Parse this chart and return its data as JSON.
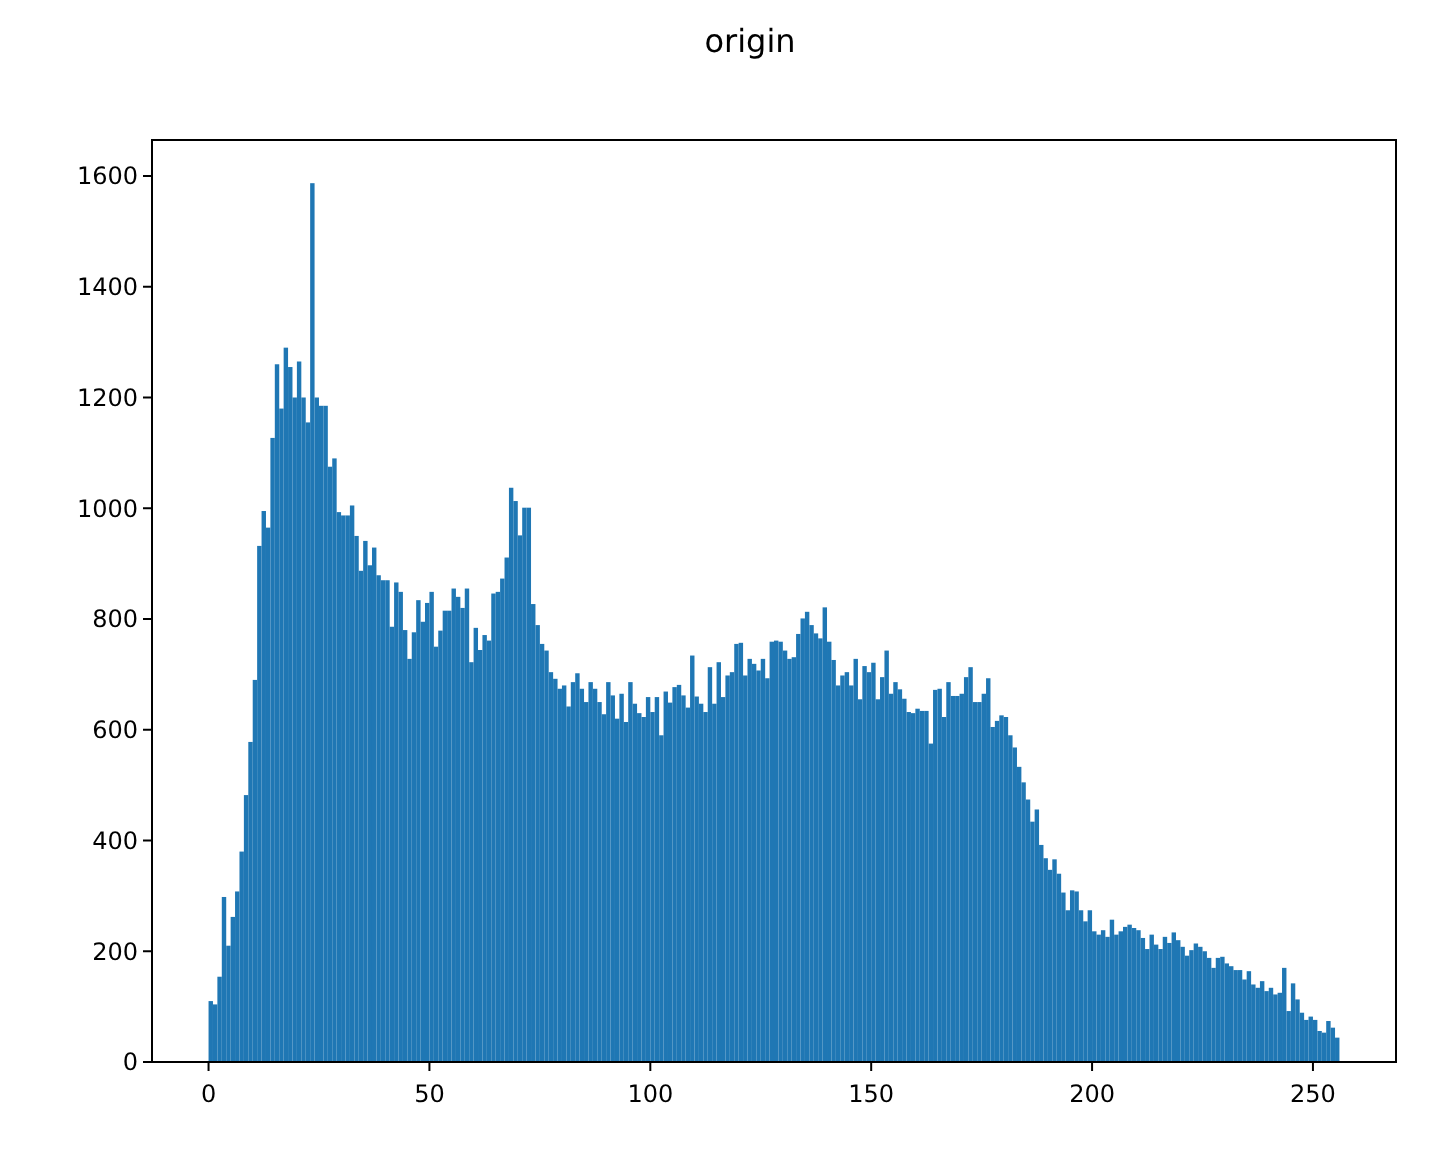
{
  "chart_data": {
    "type": "histogram",
    "title": "origin",
    "color": "#1f77b4",
    "bins": [
      0,
      1,
      2,
      3,
      4,
      5,
      6,
      7,
      8,
      9,
      10,
      11,
      12,
      13,
      14,
      15,
      16,
      17,
      18,
      19,
      20,
      21,
      22,
      23,
      24,
      25,
      26,
      27,
      28,
      29,
      30,
      31,
      32,
      33,
      34,
      35,
      36,
      37,
      38,
      39,
      40,
      41,
      42,
      43,
      44,
      45,
      46,
      47,
      48,
      49,
      50,
      51,
      52,
      53,
      54,
      55,
      56,
      57,
      58,
      59,
      60,
      61,
      62,
      63,
      64,
      65,
      66,
      67,
      68,
      69,
      70,
      71,
      72,
      73,
      74,
      75,
      76,
      77,
      78,
      79,
      80,
      81,
      82,
      83,
      84,
      85,
      86,
      87,
      88,
      89,
      90,
      91,
      92,
      93,
      94,
      95,
      96,
      97,
      98,
      99,
      100,
      101,
      102,
      103,
      104,
      105,
      106,
      107,
      108,
      109,
      110,
      111,
      112,
      113,
      114,
      115,
      116,
      117,
      118,
      119,
      120,
      121,
      122,
      123,
      124,
      125,
      126,
      127,
      128,
      129,
      130,
      131,
      132,
      133,
      134,
      135,
      136,
      137,
      138,
      139,
      140,
      141,
      142,
      143,
      144,
      145,
      146,
      147,
      148,
      149,
      150,
      151,
      152,
      153,
      154,
      155,
      156,
      157,
      158,
      159,
      160,
      161,
      162,
      163,
      164,
      165,
      166,
      167,
      168,
      169,
      170,
      171,
      172,
      173,
      174,
      175,
      176,
      177,
      178,
      179,
      180,
      181,
      182,
      183,
      184,
      185,
      186,
      187,
      188,
      189,
      190,
      191,
      192,
      193,
      194,
      195,
      196,
      197,
      198,
      199,
      200,
      201,
      202,
      203,
      204,
      205,
      206,
      207,
      208,
      209,
      210,
      211,
      212,
      213,
      214,
      215,
      216,
      217,
      218,
      219,
      220,
      221,
      222,
      223,
      224,
      225,
      226,
      227,
      228,
      229,
      230,
      231,
      232,
      233,
      234,
      235,
      236,
      237,
      238,
      239,
      240,
      241,
      242,
      243,
      244,
      245,
      246,
      247,
      248,
      249,
      250,
      251,
      252,
      253,
      254,
      255,
      256
    ],
    "values": [
      110,
      104,
      154,
      298,
      210,
      262,
      308,
      380,
      482,
      578,
      690,
      932,
      995,
      965,
      1127,
      1260,
      1180,
      1290,
      1255,
      1200,
      1265,
      1200,
      1155,
      1587,
      1200,
      1185,
      1185,
      1075,
      1090,
      993,
      987,
      987,
      1005,
      950,
      887,
      941,
      897,
      929,
      879,
      870,
      870,
      786,
      866,
      849,
      780,
      728,
      776,
      834,
      795,
      829,
      849,
      750,
      779,
      815,
      815,
      855,
      840,
      820,
      855,
      722,
      784,
      744,
      771,
      761,
      846,
      849,
      873,
      911,
      1037,
      1013,
      951,
      1001,
      1001,
      827,
      789,
      755,
      743,
      704,
      692,
      674,
      680,
      642,
      686,
      702,
      674,
      650,
      686,
      674,
      650,
      628,
      686,
      662,
      620,
      665,
      614,
      686,
      647,
      630,
      623,
      659,
      632,
      659,
      590,
      669,
      649,
      677,
      681,
      662,
      640,
      734,
      660,
      647,
      632,
      713,
      647,
      722,
      659,
      698,
      704,
      755,
      757,
      698,
      728,
      719,
      707,
      728,
      693,
      759,
      761,
      759,
      743,
      728,
      731,
      773,
      801,
      813,
      789,
      774,
      765,
      821,
      759,
      726,
      680,
      698,
      704,
      680,
      728,
      655,
      715,
      704,
      721,
      655,
      695,
      743,
      665,
      686,
      673,
      656,
      632,
      630,
      638,
      634,
      634,
      575,
      672,
      674,
      623,
      686,
      661,
      661,
      665,
      695,
      713,
      650,
      650,
      665,
      693,
      605,
      616,
      626,
      623,
      590,
      568,
      533,
      505,
      474,
      434,
      456,
      392,
      368,
      347,
      366,
      340,
      306,
      274,
      310,
      308,
      274,
      254,
      274,
      236,
      230,
      238,
      226,
      257,
      230,
      236,
      244,
      248,
      242,
      238,
      224,
      204,
      230,
      212,
      204,
      226,
      215,
      234,
      220,
      208,
      192,
      202,
      214,
      208,
      200,
      188,
      170,
      188,
      190,
      178,
      173,
      166,
      166,
      149,
      164,
      140,
      134,
      146,
      128,
      134,
      122,
      125,
      170,
      92,
      142,
      113,
      89,
      76,
      82,
      76,
      56,
      53,
      74,
      62,
      44
    ],
    "xlim": [
      -12.8,
      268.8
    ],
    "ylim": [
      0,
      1665
    ],
    "xticks": [
      0,
      50,
      100,
      150,
      200,
      250
    ],
    "yticks": [
      0,
      200,
      400,
      600,
      800,
      1000,
      1200,
      1400,
      1600
    ]
  }
}
